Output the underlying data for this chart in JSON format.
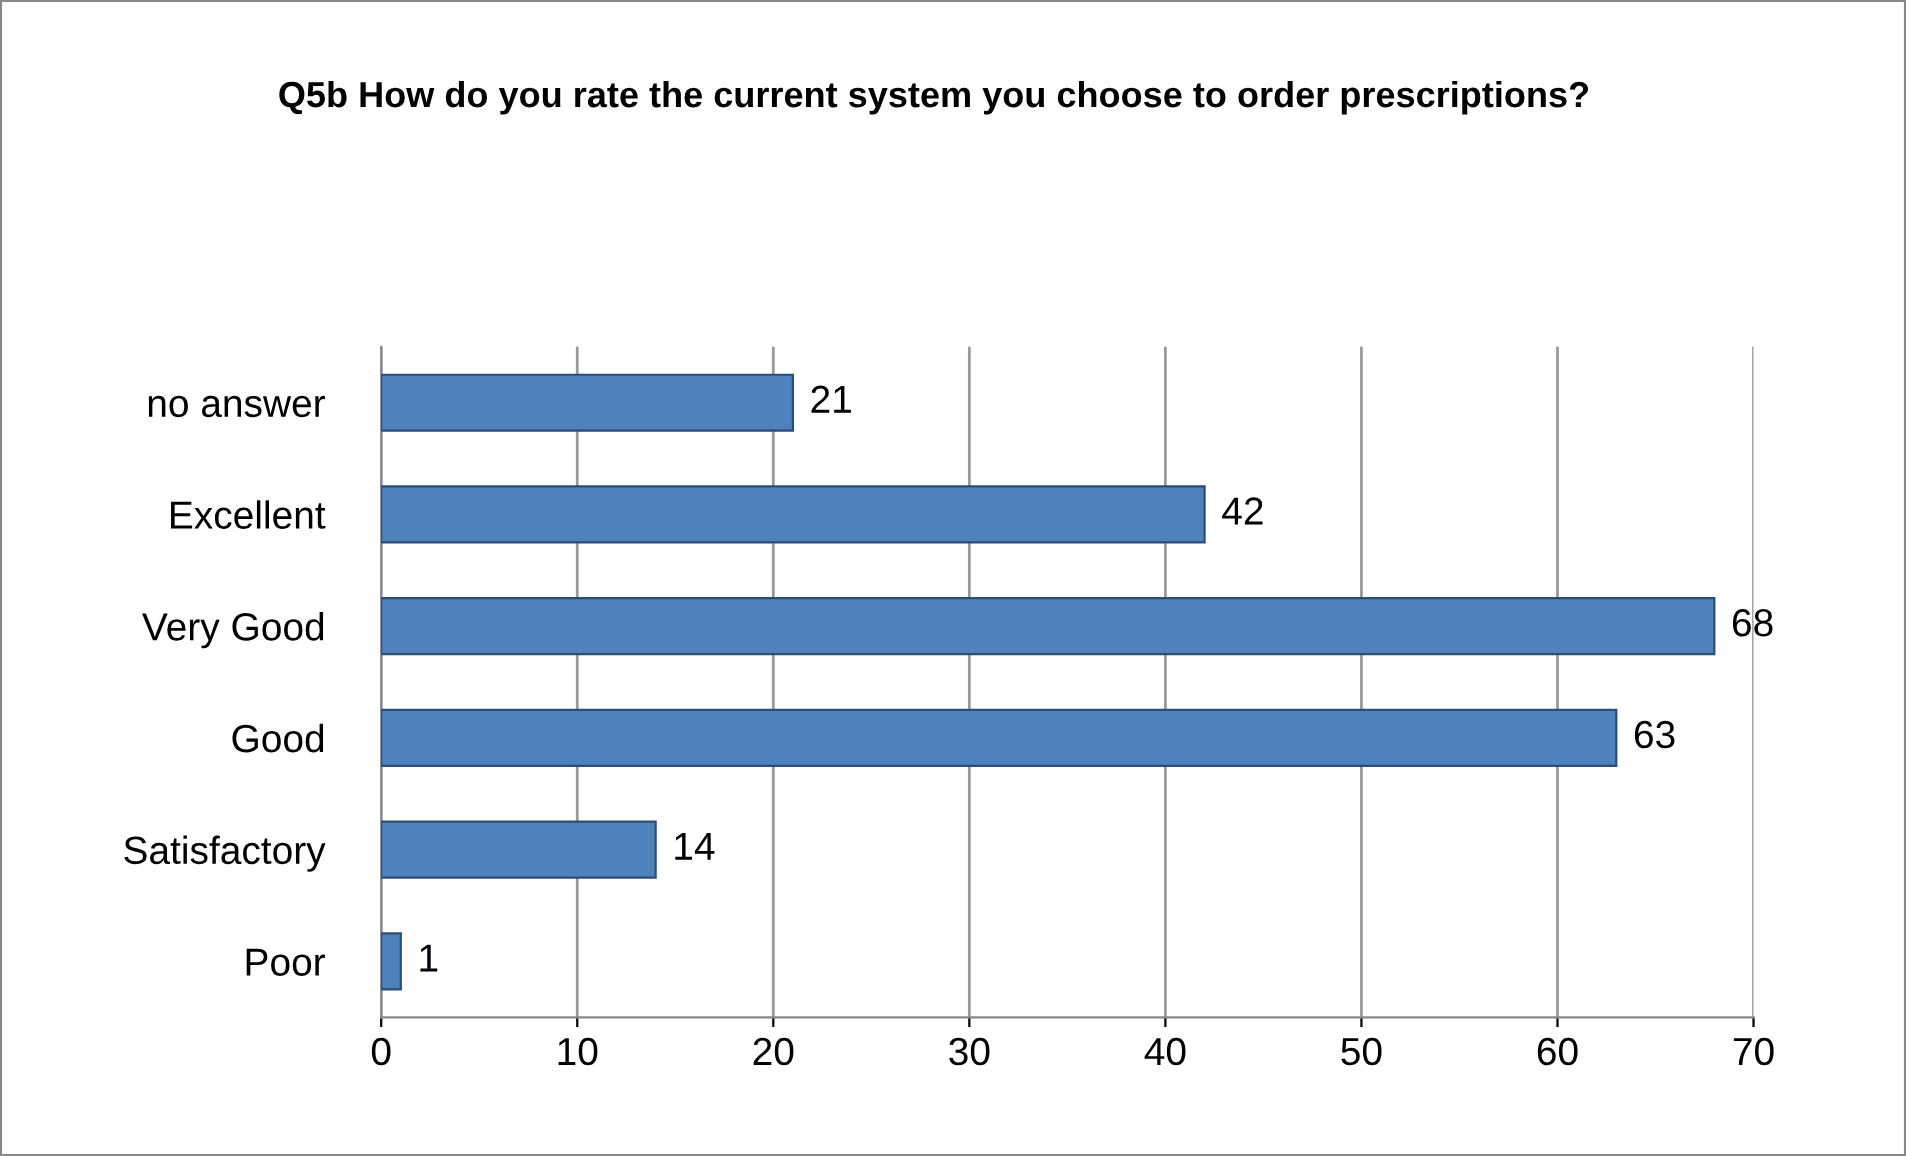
{
  "chart_data": {
    "type": "bar",
    "orientation": "horizontal",
    "title": "Q5b How do you rate the current system you choose to order prescriptions?",
    "categories": [
      "no answer",
      "Excellent",
      "Very Good",
      "Good",
      "Satisfactory",
      "Poor"
    ],
    "values": [
      21,
      42,
      68,
      63,
      14,
      1
    ],
    "color": "#4f81bd",
    "xlim": [
      0,
      70
    ],
    "xticks": [
      0,
      10,
      20,
      30,
      40,
      50,
      60,
      70
    ],
    "grid": "x",
    "data_labels": true,
    "legend": false
  }
}
